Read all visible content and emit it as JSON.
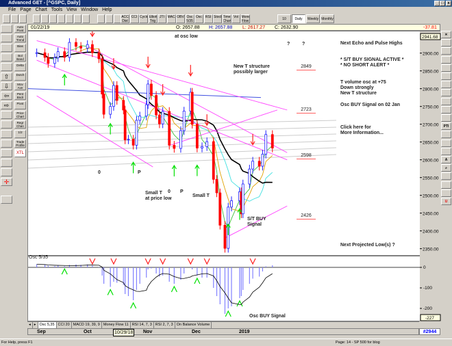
{
  "window": {
    "title": "Advanced GET - [^GSPC, Daily]"
  },
  "menu": [
    "File",
    "Page",
    "Chart",
    "Tools",
    "View",
    "Window",
    "Help"
  ],
  "toolbar": {
    "indicators": [
      "ACC Dist",
      "CCI",
      "Cycles",
      "Elliott Trig",
      "JTI",
      "MACD",
      "OBV",
      "Osc 5/35",
      "Osc",
      "RSI",
      "Stock",
      "Time Chart",
      "Vol",
      "Money Flow"
    ],
    "periods": [
      "10 Minute",
      "Daily",
      "Weekly",
      "Monthly"
    ],
    "active_period": "Daily"
  },
  "infobar": {
    "date": "01/22/19",
    "open": "O: 2657.88",
    "high": "H: 2657.88",
    "low": "L: 2617.27",
    "close": "C: 2632.90",
    "change": "-37.81"
  },
  "left_tools": [
    "Auto Pivot",
    "Auto Trend",
    "Bias",
    "Bol Band",
    "Delta",
    "Dutch",
    "Mov Ave",
    "Pent Bndr",
    "Pivot",
    "Price Chart",
    "Regr Chan",
    "1/2",
    "Trade Profile",
    "XTL"
  ],
  "price_axis": {
    "top": "2941.68",
    "ticks": [
      2900,
      2850,
      2800,
      2750,
      2700,
      2650,
      2600,
      2550,
      2500,
      2450,
      2400,
      2350
    ]
  },
  "osc_axis": {
    "ticks": [
      "0",
      "-100",
      "-200"
    ],
    "bottom": "-227",
    "title": "Osc 5/35"
  },
  "annotations": {
    "osc_low": "at osc low",
    "new_t": "New T structure",
    "possibly": "possibly larger",
    "o1": "0",
    "p1": "P",
    "small_t1": "Small T",
    "price_low": "at price low",
    "o2": "0",
    "p2": "P",
    "small_t2": "Small T",
    "st_buy": "S/T BUY",
    "signal": "Signal",
    "osc_buy": "Osc BUY Signal",
    "q1": "?",
    "q2": "?"
  },
  "targets": [
    "2849",
    "2723",
    "2598",
    "2426"
  ],
  "notes": {
    "n1": "Next Echo and Pulse Highs",
    "n2": "* S/T BUY SIGNAL ACTIVE *",
    "n3": "* NO SHORT ALERT *",
    "n4": "T volume osc at +75",
    "n5": "Down strongly",
    "n6": "New T structure",
    "n7": "Osc BUY Signal on 02 Jan",
    "n8": "Click here for",
    "n9": "More Information...",
    "n10": "Next Projected Low(s) ?"
  },
  "tabs": [
    "Osc 5,35",
    "CCI 20",
    "MACD 19, 39, 9",
    "Money Flow 11",
    "RSI 14, 7, 3",
    "RSI 2, 7, 3",
    "On Balance Volume"
  ],
  "date_axis": {
    "labels": [
      "Sep",
      "Oct",
      "Nov",
      "Dec",
      "2019"
    ],
    "cursor": "10/29/18",
    "bar_count": "#2944"
  },
  "status": {
    "help": "For Help, press F1",
    "page": "Page: 14 - SP 500 for blog"
  },
  "colors": {
    "up": "#2020ff",
    "down": "#ff0000",
    "ma": "#000000",
    "trend": "#ff40ff",
    "buy_arrow": "#00e000",
    "sell_arrow": "#ff2020",
    "osc_bar": "#8080ff"
  },
  "chart_data": {
    "type": "candlestick",
    "symbol": "^GSPC",
    "ylim": [
      2341,
      2941.68
    ],
    "dates": [
      "2018-08-31",
      "2018-09-05",
      "2018-09-07",
      "2018-09-11",
      "2018-09-13",
      "2018-09-17",
      "2018-09-20",
      "2018-09-24",
      "2018-09-27",
      "2018-10-01",
      "2018-10-04",
      "2018-10-08",
      "2018-10-10",
      "2018-10-11",
      "2018-10-15",
      "2018-10-17",
      "2018-10-19",
      "2018-10-23",
      "2018-10-24",
      "2018-10-26",
      "2018-10-29",
      "2018-10-31",
      "2018-11-02",
      "2018-11-06",
      "2018-11-07",
      "2018-11-09",
      "2018-11-12",
      "2018-11-14",
      "2018-11-16",
      "2018-11-20",
      "2018-11-23",
      "2018-11-27",
      "2018-11-29",
      "2018-12-03",
      "2018-12-04",
      "2018-12-07",
      "2018-12-10",
      "2018-12-13",
      "2018-12-17",
      "2018-12-19",
      "2018-12-21",
      "2018-12-24",
      "2018-12-26",
      "2018-12-28",
      "2019-01-02",
      "2019-01-03",
      "2019-01-04",
      "2019-01-08",
      "2019-01-10",
      "2019-01-14",
      "2019-01-16",
      "2019-01-18",
      "2019-01-22"
    ],
    "close": [
      2901,
      2888,
      2871,
      2887,
      2904,
      2888,
      2930,
      2919,
      2914,
      2924,
      2901,
      2884,
      2785,
      2728,
      2750,
      2809,
      2767,
      2740,
      2656,
      2658,
      2641,
      2711,
      2723,
      2755,
      2813,
      2781,
      2726,
      2701,
      2736,
      2641,
      2632,
      2682,
      2737,
      2790,
      2700,
      2633,
      2637,
      2651,
      2545,
      2507,
      2416,
      2351,
      2467,
      2485,
      2510,
      2448,
      2532,
      2574,
      2596,
      2582,
      2616,
      2671,
      2633
    ],
    "osc": [
      15,
      12,
      8,
      6,
      8,
      6,
      12,
      14,
      12,
      14,
      8,
      2,
      -40,
      -80,
      -95,
      -70,
      -75,
      -85,
      -130,
      -140,
      -160,
      -110,
      -80,
      -50,
      -10,
      -5,
      -30,
      -45,
      -40,
      -70,
      -80,
      -60,
      -30,
      0,
      -10,
      -40,
      -50,
      -50,
      -100,
      -140,
      -180,
      -227,
      -200,
      -190,
      -150,
      -140,
      -110,
      -80,
      -55,
      -45,
      -20,
      5,
      10
    ],
    "osc_ylim": [
      -227,
      40
    ],
    "buy_arrows": [
      "2018-09-17",
      "2018-10-15",
      "2018-10-29",
      "2018-11-23",
      "2018-12-07",
      "2018-12-26",
      "2019-01-02"
    ],
    "sell_arrows": [
      "2018-10-04",
      "2018-10-17",
      "2018-11-07",
      "2018-11-16",
      "2018-12-03",
      "2018-12-13",
      "2019-01-10"
    ],
    "trendlines": [
      {
        "from": [
          "2018-08-31",
          2935
        ],
        "to": [
          "2019-01-31",
          2740
        ]
      },
      {
        "from": [
          "2018-08-31",
          2880
        ],
        "to": [
          "2019-01-31",
          2600
        ]
      },
      {
        "from": [
          "2018-10-01",
          2920
        ],
        "to": [
          "2019-01-31",
          2620
        ]
      },
      {
        "from": [
          "2018-08-31",
          2780
        ],
        "to": [
          "2018-11-10",
          2580
        ]
      },
      {
        "from": [
          "2018-12-24",
          2380
        ],
        "to": [
          "2019-01-31",
          2470
        ]
      },
      {
        "from": [
          "2018-11-20",
          2640
        ],
        "to": [
          "2019-01-25",
          2740
        ]
      }
    ]
  }
}
